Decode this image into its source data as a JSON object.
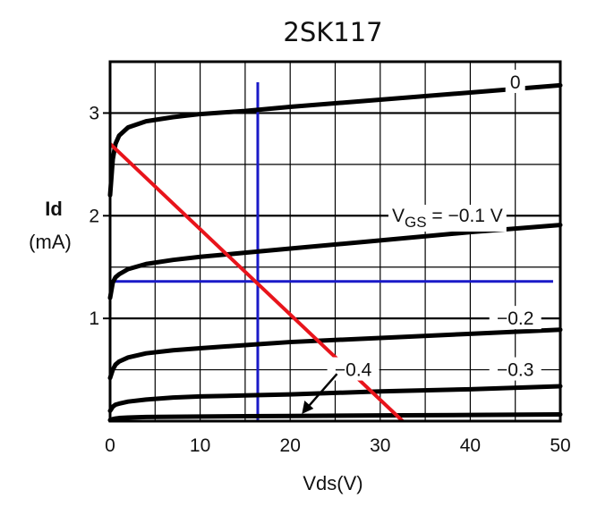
{
  "chart_data": {
    "type": "line",
    "title": "2SK117",
    "xlabel": "Vds(V)",
    "ylabel": "Id",
    "ylabel_unit": "(mA)",
    "xlim": [
      0,
      50
    ],
    "ylim": [
      0,
      3.5
    ],
    "x_ticks": [
      "0",
      "10",
      "20",
      "30",
      "40",
      "50"
    ],
    "y_ticks": [
      "1",
      "2",
      "3"
    ],
    "grid": true,
    "vgs_prefix": "V",
    "vgs_sub": "GS",
    "vgs_suffix": " = −0.1 V",
    "series": [
      {
        "name": "0",
        "x": [
          0,
          0.3,
          0.6,
          1,
          2,
          4,
          7,
          10,
          15,
          20,
          30,
          40,
          50
        ],
        "values": [
          2.2,
          2.55,
          2.7,
          2.78,
          2.86,
          2.92,
          2.96,
          2.99,
          3.02,
          3.06,
          3.13,
          3.2,
          3.27
        ]
      },
      {
        "name": "−0.1 V",
        "x": [
          0,
          0.3,
          0.6,
          1,
          2,
          4,
          7,
          10,
          15,
          20,
          30,
          40,
          50
        ],
        "values": [
          1.2,
          1.35,
          1.4,
          1.43,
          1.48,
          1.53,
          1.57,
          1.6,
          1.64,
          1.68,
          1.76,
          1.84,
          1.91
        ]
      },
      {
        "name": "−0.2",
        "x": [
          0,
          0.3,
          0.6,
          1,
          2,
          4,
          7,
          10,
          15,
          20,
          30,
          40,
          50
        ],
        "values": [
          0.42,
          0.5,
          0.55,
          0.58,
          0.62,
          0.66,
          0.69,
          0.71,
          0.74,
          0.77,
          0.81,
          0.85,
          0.89
        ]
      },
      {
        "name": "−0.3",
        "x": [
          0,
          0.3,
          0.6,
          1,
          2,
          4,
          7,
          10,
          15,
          20,
          30,
          40,
          50
        ],
        "values": [
          0.1,
          0.14,
          0.16,
          0.17,
          0.19,
          0.21,
          0.23,
          0.24,
          0.25,
          0.26,
          0.29,
          0.31,
          0.34
        ]
      },
      {
        "name": "−0.4",
        "x": [
          0,
          0.3,
          0.6,
          1,
          2,
          4,
          7,
          10,
          15,
          20,
          30,
          40,
          50
        ],
        "values": [
          0.01,
          0.02,
          0.025,
          0.03,
          0.035,
          0.04,
          0.042,
          0.045,
          0.048,
          0.05,
          0.055,
          0.06,
          0.065
        ]
      }
    ],
    "curve_labels": [
      {
        "text": "0",
        "x": 45,
        "y": 3.3
      },
      {
        "text": "−0.2",
        "x": 45,
        "y": 1.0
      },
      {
        "text": "−0.3",
        "x": 45,
        "y": 0.5
      },
      {
        "text": "−0.4",
        "x": 27,
        "y": 0.5
      }
    ],
    "load_line": {
      "x": [
        0,
        32.5
      ],
      "y": [
        2.7,
        0.0
      ],
      "color": "#e8141b"
    },
    "operating_point": {
      "x": 16.4,
      "y": 1.36,
      "color": "#1a1ac8"
    }
  }
}
